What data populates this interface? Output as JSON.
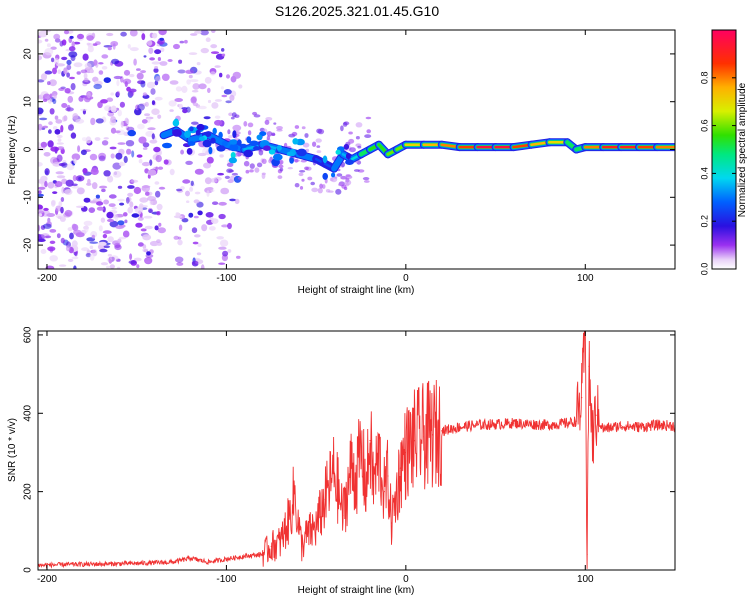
{
  "figure_title": "S126.2025.321.01.45.G10",
  "chart_data": [
    {
      "type": "heatmap",
      "title": "S126.2025.321.01.45.G10",
      "xlabel": "Height of straight line (km)",
      "ylabel": "Frequency (Hz)",
      "xlim": [
        -205,
        150
      ],
      "ylim": [
        -25,
        25
      ],
      "xticks": [
        -200,
        -100,
        0,
        100
      ],
      "yticks": [
        -20,
        -10,
        0,
        10,
        20
      ],
      "xtick_labels": [
        "-200",
        "-100",
        "0",
        "100"
      ],
      "ytick_labels": [
        "-20",
        "-10",
        "0",
        "10",
        "20"
      ],
      "colorbar": {
        "label": "Normalized spectral amplitude",
        "range": [
          0,
          1
        ],
        "ticks": [
          0.0,
          0.2,
          0.4,
          0.6,
          0.8
        ],
        "tick_labels": [
          "0.0",
          "0.2",
          "0.4",
          "0.6",
          "0.8"
        ]
      },
      "ridge": {
        "x": [
          -135,
          -128,
          -120,
          -110,
          -100,
          -90,
          -80,
          -70,
          -60,
          -50,
          -45,
          -40,
          -35,
          -30,
          -25,
          -20,
          -15,
          -10,
          -5,
          0,
          10,
          20,
          30,
          40,
          50,
          60,
          70,
          80,
          90,
          95,
          100,
          110,
          120,
          130,
          140,
          150
        ],
        "y": [
          3,
          4,
          2,
          3,
          1,
          0,
          1,
          0,
          -1,
          -2,
          -3,
          -4,
          -1,
          -2,
          -1,
          0,
          1,
          -1,
          0,
          1,
          1,
          1,
          0.5,
          0.5,
          0.5,
          0.5,
          1,
          1.5,
          1.5,
          0,
          0.5,
          0.5,
          0.5,
          0.5,
          0.5,
          0.5
        ],
        "amplitude": [
          0.3,
          0.35,
          0.3,
          0.3,
          0.3,
          0.35,
          0.35,
          0.35,
          0.3,
          0.3,
          0.25,
          0.3,
          0.35,
          0.4,
          0.5,
          0.55,
          0.55,
          0.6,
          0.6,
          0.7,
          0.75,
          0.8,
          0.85,
          0.95,
          0.98,
          0.95,
          0.85,
          0.75,
          0.7,
          0.5,
          0.8,
          0.9,
          0.95,
          0.9,
          0.85,
          0.8
        ]
      }
    },
    {
      "type": "line",
      "xlabel": "Height of straight line (km)",
      "ylabel": "SNR (10 * v/v)",
      "xlim": [
        -205,
        150
      ],
      "ylim": [
        0,
        610
      ],
      "xticks": [
        -200,
        -100,
        0,
        100
      ],
      "yticks": [
        0,
        200,
        400,
        600
      ],
      "xtick_labels": [
        "-200",
        "-100",
        "0",
        "100"
      ],
      "ytick_labels": [
        "0",
        "200",
        "400",
        "600"
      ],
      "series": [
        {
          "name": "SNR",
          "color": "#f03232",
          "x": [
            -205,
            -190,
            -170,
            -150,
            -130,
            -120,
            -110,
            -100,
            -90,
            -80,
            -75,
            -70,
            -65,
            -62,
            -60,
            -58,
            -55,
            -50,
            -45,
            -40,
            -35,
            -30,
            -28,
            -25,
            -22,
            -20,
            -18,
            -15,
            -12,
            -10,
            -8,
            -5,
            -3,
            0,
            5,
            10,
            15,
            20,
            25,
            30,
            40,
            50,
            60,
            70,
            80,
            90,
            95,
            98,
            100,
            101,
            102,
            104,
            106,
            110,
            120,
            130,
            140,
            150
          ],
          "y": [
            12,
            14,
            15,
            17,
            20,
            30,
            20,
            28,
            35,
            40,
            60,
            70,
            130,
            200,
            120,
            60,
            90,
            110,
            180,
            250,
            140,
            270,
            230,
            300,
            210,
            330,
            220,
            290,
            200,
            240,
            120,
            200,
            260,
            300,
            330,
            340,
            345,
            355,
            360,
            365,
            370,
            372,
            375,
            372,
            370,
            375,
            380,
            440,
            605,
            40,
            520,
            330,
            395,
            360,
            368,
            365,
            370,
            368
          ]
        }
      ]
    }
  ]
}
